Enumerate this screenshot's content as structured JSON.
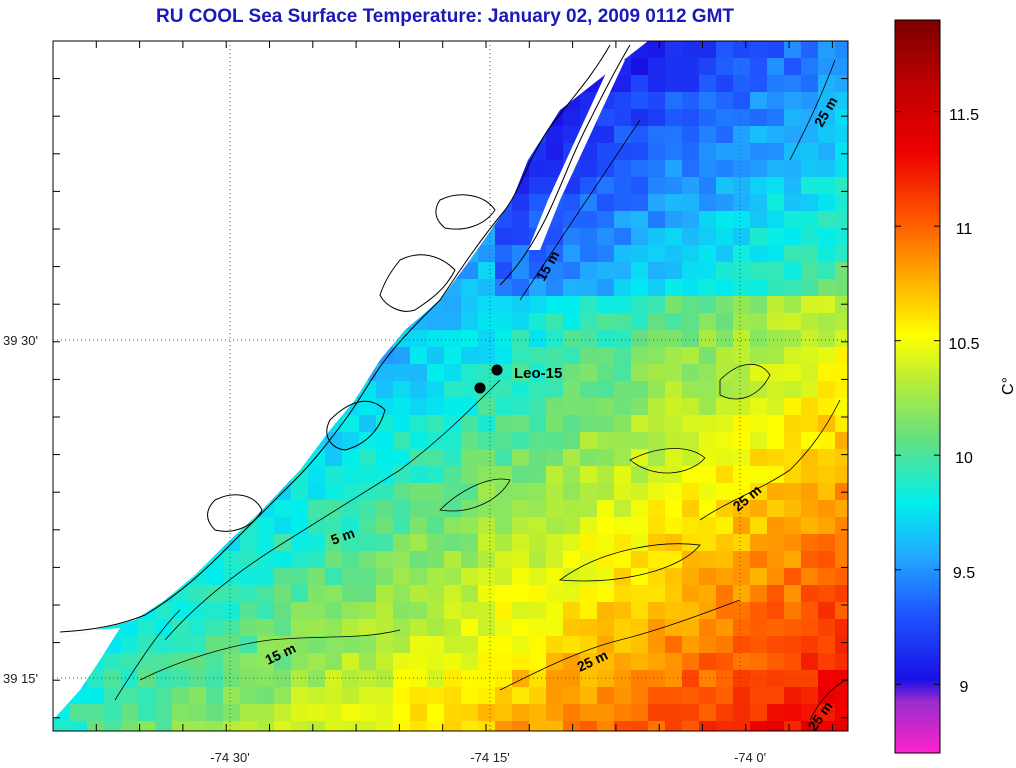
{
  "title": "RU COOL  Sea Surface Temperature:  January 02, 2009 0112 GMT",
  "colorbar": {
    "unit_label": "C°",
    "ticks": [
      "9",
      "9.5",
      "10",
      "10.5",
      "11",
      "11.5"
    ],
    "min": 8.7,
    "max": 11.9
  },
  "axes": {
    "x_tick_labels": [
      "-74 30'",
      "-74 15'",
      "-74 0'"
    ],
    "y_tick_labels": [
      "39 30'",
      "39 15'"
    ]
  },
  "contour_labels": [
    "15 m",
    "25 m",
    "5 m",
    "25 m",
    "15 m",
    "25 m",
    "25 m"
  ],
  "stations": {
    "label": "Leo-15"
  },
  "colors": {
    "title": "#1a1ab8",
    "land": "#ffffff",
    "coast": "#000000",
    "station": "#000000"
  }
}
